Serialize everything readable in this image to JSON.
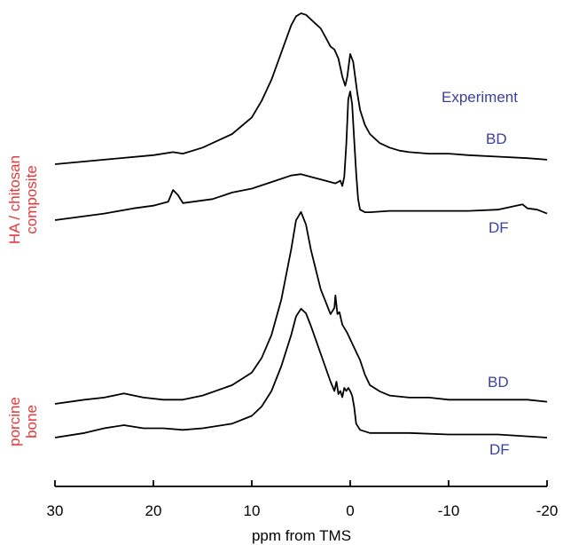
{
  "chart_data": {
    "type": "line",
    "xlabel": "ppm from TMS",
    "xlim": [
      30,
      -20
    ],
    "x_ticks": [
      "30",
      "20",
      "10",
      "0",
      "-10",
      "-20"
    ],
    "x_tick_values": [
      30,
      20,
      10,
      0,
      -10,
      -20
    ],
    "header_label": "Experiment",
    "group_labels": [
      {
        "text": "HA / chitosan\ncomposite",
        "lines": [
          "HA / chitosan",
          "composite"
        ]
      },
      {
        "text": "porcine\nbone",
        "lines": [
          "porcine",
          "bone"
        ]
      }
    ],
    "series": [
      {
        "name": "BD",
        "group": "HA / chitosan composite",
        "x": [
          30,
          25,
          20,
          18,
          17,
          15,
          12,
          10,
          9,
          8,
          7,
          6,
          5.5,
          5,
          4.5,
          4,
          3,
          2.5,
          2,
          1.6,
          1.2,
          0.8,
          0.5,
          0.3,
          0,
          -0.3,
          -0.7,
          -1,
          -1.5,
          -2,
          -3,
          -4,
          -5,
          -6,
          -8,
          -10,
          -12,
          -15,
          -18,
          -20
        ],
        "y": [
          0.0,
          0.03,
          0.06,
          0.08,
          0.07,
          0.11,
          0.2,
          0.31,
          0.42,
          0.56,
          0.74,
          0.92,
          0.98,
          1.0,
          0.99,
          0.96,
          0.9,
          0.84,
          0.78,
          0.76,
          0.7,
          0.58,
          0.52,
          0.58,
          0.73,
          0.68,
          0.48,
          0.36,
          0.26,
          0.2,
          0.14,
          0.11,
          0.09,
          0.08,
          0.07,
          0.07,
          0.06,
          0.05,
          0.04,
          0.03
        ]
      },
      {
        "name": "DF",
        "group": "HA / chitosan composite",
        "x": [
          30,
          25,
          22,
          20,
          18.5,
          18,
          17.5,
          17,
          16,
          14,
          12,
          10,
          8,
          6,
          5,
          4,
          2.5,
          1.5,
          1,
          0.8,
          0.6,
          0.4,
          0.2,
          0,
          -0.2,
          -0.4,
          -0.6,
          -0.8,
          -1,
          -1.5,
          -2,
          -4,
          -6,
          -8,
          -10,
          -12,
          -15,
          -17.5,
          -18,
          -19,
          -20
        ],
        "y": [
          0.0,
          0.05,
          0.09,
          0.11,
          0.14,
          0.23,
          0.19,
          0.13,
          0.14,
          0.16,
          0.21,
          0.24,
          0.29,
          0.34,
          0.35,
          0.33,
          0.3,
          0.28,
          0.3,
          0.26,
          0.33,
          0.58,
          0.92,
          0.98,
          0.88,
          0.62,
          0.36,
          0.16,
          0.08,
          0.06,
          0.06,
          0.07,
          0.07,
          0.07,
          0.07,
          0.07,
          0.08,
          0.12,
          0.09,
          0.08,
          0.05
        ]
      },
      {
        "name": "BD",
        "group": "porcine bone",
        "x": [
          30,
          27,
          25,
          23,
          21,
          19,
          17,
          15,
          12,
          10,
          9,
          8,
          7,
          6,
          5.5,
          5,
          4.5,
          4,
          3,
          2,
          1.6,
          1.5,
          1.3,
          1.1,
          0.8,
          0.3,
          -0.3,
          -1,
          -1.5,
          -2,
          -3,
          -4,
          -6,
          -8,
          -10,
          -12,
          -15,
          -18,
          -20
        ],
        "y": [
          0.0,
          0.02,
          0.03,
          0.05,
          0.03,
          0.02,
          0.02,
          0.04,
          0.09,
          0.15,
          0.22,
          0.33,
          0.5,
          0.74,
          0.88,
          0.92,
          0.86,
          0.74,
          0.55,
          0.43,
          0.46,
          0.52,
          0.43,
          0.44,
          0.38,
          0.34,
          0.28,
          0.21,
          0.14,
          0.09,
          0.06,
          0.04,
          0.03,
          0.03,
          0.02,
          0.02,
          0.02,
          0.02,
          0.01
        ]
      },
      {
        "name": "DF",
        "group": "porcine bone",
        "x": [
          30,
          27,
          25,
          23,
          21,
          19,
          17,
          15,
          12,
          10,
          9,
          8,
          7,
          6,
          5.5,
          5,
          4.5,
          4,
          3,
          2,
          1.6,
          1.4,
          1.2,
          1,
          0.8,
          0.6,
          0.4,
          0.2,
          0,
          -0.2,
          -0.4,
          -0.6,
          -1,
          -2,
          -4,
          -6,
          -10,
          -15,
          -20
        ],
        "y": [
          0.0,
          0.03,
          0.06,
          0.08,
          0.06,
          0.06,
          0.05,
          0.06,
          0.09,
          0.14,
          0.2,
          0.3,
          0.46,
          0.66,
          0.78,
          0.83,
          0.8,
          0.72,
          0.54,
          0.36,
          0.3,
          0.36,
          0.28,
          0.3,
          0.26,
          0.32,
          0.3,
          0.32,
          0.3,
          0.27,
          0.2,
          0.09,
          0.05,
          0.03,
          0.03,
          0.03,
          0.02,
          0.02,
          0.0
        ]
      }
    ],
    "colors": {
      "trace": "#000000",
      "group_label": "#e8373a",
      "series_label": "#3b3f9e",
      "axis": "#000000"
    }
  }
}
